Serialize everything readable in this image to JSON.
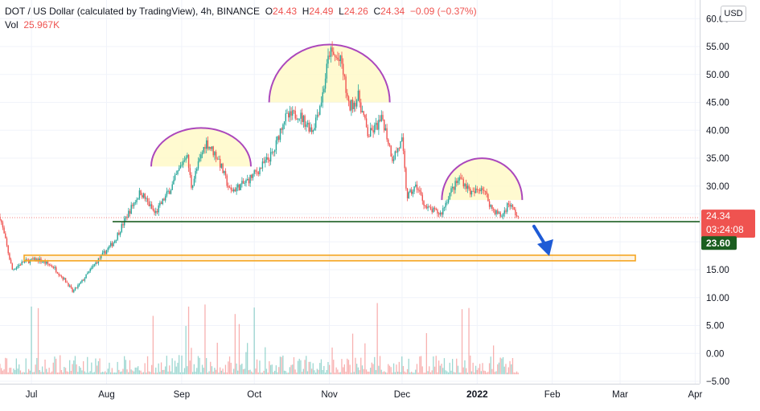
{
  "header": {
    "symbol": "DOT / US Dollar (calculated by TradingView), 4h, BINANCE",
    "o_label": "O",
    "o_value": "24.43",
    "h_label": "H",
    "h_value": "24.49",
    "l_label": "L",
    "l_value": "24.26",
    "c_label": "C",
    "c_value": "24.34",
    "change": "−0.09 (−0.37%)",
    "vol_label": "Vol",
    "vol_value": "25.967K"
  },
  "currency_button": "USD",
  "price_tags": {
    "last_price": "24.34",
    "countdown": "03:24:08",
    "support_level": "23.60"
  },
  "colors": {
    "up": "#26a69a",
    "down": "#ef5350",
    "pattern_arc": "#ab47bc",
    "pattern_fill": "#fff9c4",
    "zone": "#f5a623",
    "support_line": "#1b5e20",
    "arrow": "#1e5bd6"
  },
  "chart_data": {
    "type": "candlestick",
    "y_ticks": [
      "60.00",
      "55.00",
      "50.00",
      "45.00",
      "40.00",
      "35.00",
      "30.00",
      "25.00",
      "20.00",
      "15.00",
      "10.00",
      "5.00",
      "0.00",
      "−5.00"
    ],
    "x_ticks": [
      {
        "label": "Jul",
        "bold": false
      },
      {
        "label": "Aug",
        "bold": false
      },
      {
        "label": "Sep",
        "bold": false
      },
      {
        "label": "Oct",
        "bold": false
      },
      {
        "label": "Nov",
        "bold": false
      },
      {
        "label": "Dec",
        "bold": false
      },
      {
        "label": "2022",
        "bold": true
      },
      {
        "label": "Feb",
        "bold": false
      },
      {
        "label": "Mar",
        "bold": false
      },
      {
        "label": "Apr",
        "bold": false
      }
    ],
    "ylim": [
      -5,
      60
    ],
    "price_path": [
      [
        "2021-06-21",
        24.5
      ],
      [
        "2021-06-26",
        15.0
      ],
      [
        "2021-07-01",
        16.5
      ],
      [
        "2021-07-07",
        16.8
      ],
      [
        "2021-07-13",
        15.5
      ],
      [
        "2021-07-19",
        12.5
      ],
      [
        "2021-07-21",
        11.0
      ],
      [
        "2021-07-25",
        13.0
      ],
      [
        "2021-07-31",
        16.5
      ],
      [
        "2021-08-07",
        20.0
      ],
      [
        "2021-08-14",
        26.0
      ],
      [
        "2021-08-18",
        29.0
      ],
      [
        "2021-08-24",
        25.0
      ],
      [
        "2021-08-31",
        30.0
      ],
      [
        "2021-09-06",
        36.0
      ],
      [
        "2021-09-08",
        30.0
      ],
      [
        "2021-09-14",
        38.0
      ],
      [
        "2021-09-19",
        35.0
      ],
      [
        "2021-09-24",
        29.0
      ],
      [
        "2021-09-30",
        30.5
      ],
      [
        "2021-10-06",
        33.0
      ],
      [
        "2021-10-12",
        36.0
      ],
      [
        "2021-10-16",
        42.0
      ],
      [
        "2021-10-22",
        43.0
      ],
      [
        "2021-10-28",
        40.0
      ],
      [
        "2021-11-01",
        46.0
      ],
      [
        "2021-11-04",
        54.0
      ],
      [
        "2021-11-09",
        52.0
      ],
      [
        "2021-11-12",
        44.0
      ],
      [
        "2021-11-16",
        46.0
      ],
      [
        "2021-11-20",
        39.0
      ],
      [
        "2021-11-26",
        42.0
      ],
      [
        "2021-11-30",
        35.0
      ],
      [
        "2021-12-04",
        38.0
      ],
      [
        "2021-12-06",
        28.0
      ],
      [
        "2021-12-10",
        30.0
      ],
      [
        "2021-12-14",
        26.0
      ],
      [
        "2021-12-20",
        25.0
      ],
      [
        "2021-12-24",
        29.0
      ],
      [
        "2021-12-28",
        31.5
      ],
      [
        "2022-01-02",
        28.5
      ],
      [
        "2022-01-06",
        30.0
      ],
      [
        "2022-01-10",
        26.0
      ],
      [
        "2022-01-14",
        24.5
      ],
      [
        "2022-01-17",
        27.0
      ],
      [
        "2022-01-21",
        24.3
      ]
    ],
    "volume_baseline": 0,
    "support_level": 23.6,
    "demand_zone": [
      16.6,
      17.6
    ],
    "patterns": "head and shoulders (left shoulder, head, right shoulder)"
  }
}
